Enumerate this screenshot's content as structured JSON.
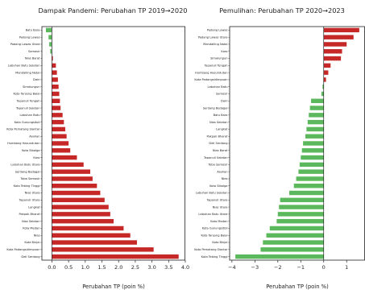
{
  "chart_data": [
    {
      "type": "bar",
      "orientation": "horizontal",
      "title": "Dampak Pandemi: Perubahan TP  2019→2020",
      "xlabel": "Perubahan TP  (poin %)",
      "xlim": [
        -0.3,
        4.0
      ],
      "xticks": [
        "0.0",
        "0.5",
        "1.0",
        "1.5",
        "2.0",
        "2.5",
        "3.0",
        "3.5",
        "4.0"
      ],
      "xtick_values": [
        0,
        0.5,
        1.0,
        1.5,
        2.0,
        2.5,
        3.0,
        3.5,
        4.0
      ],
      "categories": [
        "Batu Bara",
        "Padang Lawas",
        "Padang Lawas Utara",
        "Samosir",
        "Nias Barat",
        "Labuhan Batu Selatan",
        "Mandailing Natal",
        "Dairi",
        "Simalungun",
        "Kota Tanjung Balai",
        "Tapanuli Tengah",
        "Tapanuli Selatan",
        "Labuhan Batu",
        "Kota Gunungsitoli",
        "Kota Pematang Siantar",
        "Asahan",
        "Humbang Hasundutan",
        "Kota Sibolga",
        "Karo",
        "Labuhan Batu Utara",
        "Serdang Bedagai",
        "Toba Samosir",
        "Kota Tebing Tinggi",
        "Nias Utara",
        "Tapanuli Utara",
        "Langkat",
        "Pakpak Bharat",
        "Nias Selatan",
        "Kota Medan",
        "Nias",
        "Kota Binjai",
        "Kota Padangsidimpuan",
        "Deli Serdang"
      ],
      "values": [
        -0.18,
        -0.1,
        -0.08,
        -0.05,
        0.03,
        0.12,
        0.15,
        0.18,
        0.2,
        0.22,
        0.24,
        0.26,
        0.32,
        0.36,
        0.4,
        0.44,
        0.5,
        0.55,
        0.75,
        0.95,
        1.15,
        1.22,
        1.35,
        1.45,
        1.58,
        1.7,
        1.75,
        1.85,
        2.15,
        2.35,
        2.55,
        3.05,
        3.8
      ],
      "positive_color": "#c62828",
      "negative_color": "#5cb85c"
    },
    {
      "type": "bar",
      "orientation": "horizontal",
      "title": "Pemulihan: Perubahan TP  2020→2023",
      "xlabel": "Perubahan TP  (poin %)",
      "xlim": [
        -4.1,
        1.8
      ],
      "xticks": [
        "−4",
        "−3",
        "−2",
        "−1",
        "0",
        "1"
      ],
      "xtick_values": [
        -4,
        -3,
        -2,
        -1,
        0,
        1
      ],
      "categories": [
        "Padang Lawas",
        "Padang Lawas Utara",
        "Mandailing Natal",
        "Karo",
        "Simalungun",
        "Tapanuli Tengah",
        "Humbang Hasundutan",
        "Kota Padangsidimpuan",
        "Labuhan Batu",
        "Samosir",
        "Dairi",
        "Serdang Bedagai",
        "Batu Bara",
        "Nias Selatan",
        "Langkat",
        "Pakpak Bharat",
        "Deli Serdang",
        "Nias Barat",
        "Tapanuli Selatan",
        "Toba Samosir",
        "Asahan",
        "Nias",
        "Kota Sibolga",
        "Labuhan Batu Selatan",
        "Tapanuli Utara",
        "Nias Utara",
        "Labuhan Batu Utara",
        "Kota Medan",
        "Kota Gunungsitoli",
        "Kota Tanjung Balai",
        "Kota Binjai",
        "Kota Pematang Siantar",
        "Kota Tebing Tinggi"
      ],
      "values": [
        1.55,
        1.3,
        1.0,
        0.8,
        0.75,
        0.3,
        0.2,
        0.1,
        -0.05,
        -0.1,
        -0.55,
        -0.6,
        -0.65,
        -0.7,
        -0.75,
        -0.8,
        -0.9,
        -0.95,
        -1.0,
        -1.05,
        -1.1,
        -1.2,
        -1.3,
        -1.5,
        -1.9,
        -1.95,
        -2.0,
        -2.05,
        -2.35,
        -2.5,
        -2.65,
        -2.75,
        -3.85
      ],
      "positive_color": "#c62828",
      "negative_color": "#5cb85c"
    }
  ]
}
